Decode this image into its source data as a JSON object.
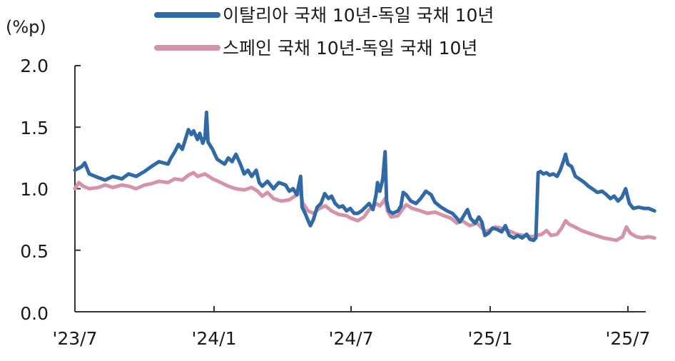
{
  "colors": {
    "italy": "#2f6aa6",
    "spain": "#d593a8",
    "axis": "#333333"
  },
  "chart_data": {
    "type": "line",
    "unit_label": "(%p)",
    "title": "",
    "xlabel": "",
    "ylabel": "(%p)",
    "ylim": [
      0.0,
      2.0
    ],
    "yticks": [
      0.0,
      0.5,
      1.0,
      1.5,
      2.0
    ],
    "ytick_labels": [
      "0.0",
      "0.5",
      "1.0",
      "1.5",
      "2.0"
    ],
    "xlim": [
      "2023-07-01",
      "2025-08-05"
    ],
    "xticks": [
      "2023-07-01",
      "2024-01-01",
      "2024-07-01",
      "2025-01-01",
      "2025-07-01"
    ],
    "xtick_labels": [
      "'23/7",
      "'24/1",
      "'24/7",
      "'25/1",
      "'25/7"
    ],
    "grid": false,
    "legend_position": "top-center",
    "series": [
      {
        "name": "이탈리아 국채 10년-독일 국채 10년",
        "color": "#2f6aa6",
        "points": [
          [
            "2023-07-01",
            1.15
          ],
          [
            "2023-07-10",
            1.18
          ],
          [
            "2023-07-14",
            1.21
          ],
          [
            "2023-07-20",
            1.12
          ],
          [
            "2023-08-01",
            1.09
          ],
          [
            "2023-08-10",
            1.07
          ],
          [
            "2023-08-20",
            1.1
          ],
          [
            "2023-09-01",
            1.08
          ],
          [
            "2023-09-10",
            1.12
          ],
          [
            "2023-09-20",
            1.1
          ],
          [
            "2023-10-01",
            1.14
          ],
          [
            "2023-10-10",
            1.18
          ],
          [
            "2023-10-20",
            1.22
          ],
          [
            "2023-11-01",
            1.2
          ],
          [
            "2023-11-05",
            1.25
          ],
          [
            "2023-11-10",
            1.3
          ],
          [
            "2023-11-15",
            1.36
          ],
          [
            "2023-11-20",
            1.32
          ],
          [
            "2023-11-25",
            1.42
          ],
          [
            "2023-11-28",
            1.48
          ],
          [
            "2023-12-02",
            1.44
          ],
          [
            "2023-12-05",
            1.47
          ],
          [
            "2023-12-10",
            1.4
          ],
          [
            "2023-12-13",
            1.45
          ],
          [
            "2023-12-17",
            1.37
          ],
          [
            "2023-12-20",
            1.42
          ],
          [
            "2023-12-22",
            1.62
          ],
          [
            "2023-12-24",
            1.38
          ],
          [
            "2023-12-30",
            1.32
          ],
          [
            "2024-01-05",
            1.24
          ],
          [
            "2024-01-10",
            1.22
          ],
          [
            "2024-01-15",
            1.2
          ],
          [
            "2024-01-20",
            1.25
          ],
          [
            "2024-01-25",
            1.22
          ],
          [
            "2024-01-30",
            1.28
          ],
          [
            "2024-02-05",
            1.2
          ],
          [
            "2024-02-10",
            1.12
          ],
          [
            "2024-02-15",
            1.15
          ],
          [
            "2024-02-20",
            1.1
          ],
          [
            "2024-02-26",
            1.15
          ],
          [
            "2024-03-01",
            1.05
          ],
          [
            "2024-03-05",
            1.02
          ],
          [
            "2024-03-12",
            1.06
          ],
          [
            "2024-03-20",
            1.0
          ],
          [
            "2024-03-27",
            1.05
          ],
          [
            "2024-04-05",
            1.03
          ],
          [
            "2024-04-10",
            0.98
          ],
          [
            "2024-04-15",
            1.0
          ],
          [
            "2024-04-20",
            0.95
          ],
          [
            "2024-04-25",
            1.1
          ],
          [
            "2024-04-27",
            0.85
          ],
          [
            "2024-05-01",
            0.8
          ],
          [
            "2024-05-05",
            0.74
          ],
          [
            "2024-05-08",
            0.7
          ],
          [
            "2024-05-12",
            0.75
          ],
          [
            "2024-05-17",
            0.85
          ],
          [
            "2024-05-22",
            0.88
          ],
          [
            "2024-05-27",
            0.96
          ],
          [
            "2024-06-01",
            0.92
          ],
          [
            "2024-06-05",
            0.94
          ],
          [
            "2024-06-10",
            0.88
          ],
          [
            "2024-06-15",
            0.85
          ],
          [
            "2024-06-20",
            0.86
          ],
          [
            "2024-06-25",
            0.82
          ],
          [
            "2024-06-30",
            0.84
          ],
          [
            "2024-07-05",
            0.8
          ],
          [
            "2024-07-10",
            0.8
          ],
          [
            "2024-07-15",
            0.82
          ],
          [
            "2024-07-20",
            0.85
          ],
          [
            "2024-07-25",
            0.88
          ],
          [
            "2024-07-30",
            0.83
          ],
          [
            "2024-08-03",
            0.95
          ],
          [
            "2024-08-05",
            1.05
          ],
          [
            "2024-08-08",
            0.98
          ],
          [
            "2024-08-12",
            1.08
          ],
          [
            "2024-08-15",
            1.3
          ],
          [
            "2024-08-17",
            0.9
          ],
          [
            "2024-08-20",
            0.82
          ],
          [
            "2024-08-25",
            0.8
          ],
          [
            "2024-09-01",
            0.82
          ],
          [
            "2024-09-05",
            0.86
          ],
          [
            "2024-09-08",
            0.97
          ],
          [
            "2024-09-12",
            0.95
          ],
          [
            "2024-09-18",
            0.9
          ],
          [
            "2024-09-25",
            0.88
          ],
          [
            "2024-10-01",
            0.92
          ],
          [
            "2024-10-08",
            0.98
          ],
          [
            "2024-10-15",
            0.95
          ],
          [
            "2024-10-20",
            0.89
          ],
          [
            "2024-10-28",
            0.85
          ],
          [
            "2024-11-05",
            0.82
          ],
          [
            "2024-11-12",
            0.8
          ],
          [
            "2024-11-18",
            0.76
          ],
          [
            "2024-11-22",
            0.73
          ],
          [
            "2024-11-27",
            0.78
          ],
          [
            "2024-12-02",
            0.83
          ],
          [
            "2024-12-06",
            0.76
          ],
          [
            "2024-12-12",
            0.72
          ],
          [
            "2024-12-17",
            0.77
          ],
          [
            "2024-12-21",
            0.73
          ],
          [
            "2024-12-25",
            0.62
          ],
          [
            "2024-12-30",
            0.64
          ],
          [
            "2025-01-04",
            0.68
          ],
          [
            "2025-01-10",
            0.67
          ],
          [
            "2025-01-16",
            0.65
          ],
          [
            "2025-01-21",
            0.7
          ],
          [
            "2025-01-26",
            0.62
          ],
          [
            "2025-02-01",
            0.6
          ],
          [
            "2025-02-06",
            0.62
          ],
          [
            "2025-02-12",
            0.6
          ],
          [
            "2025-02-18",
            0.63
          ],
          [
            "2025-02-22",
            0.59
          ],
          [
            "2025-02-27",
            0.58
          ],
          [
            "2025-03-02",
            0.6
          ],
          [
            "2025-03-05",
            1.13
          ],
          [
            "2025-03-08",
            1.14
          ],
          [
            "2025-03-12",
            1.12
          ],
          [
            "2025-03-16",
            1.13
          ],
          [
            "2025-03-20",
            1.11
          ],
          [
            "2025-03-25",
            1.12
          ],
          [
            "2025-03-30",
            1.1
          ],
          [
            "2025-04-03",
            1.15
          ],
          [
            "2025-04-07",
            1.22
          ],
          [
            "2025-04-10",
            1.28
          ],
          [
            "2025-04-13",
            1.2
          ],
          [
            "2025-04-18",
            1.18
          ],
          [
            "2025-04-23",
            1.1
          ],
          [
            "2025-04-28",
            1.08
          ],
          [
            "2025-05-05",
            1.05
          ],
          [
            "2025-05-10",
            1.02
          ],
          [
            "2025-05-15",
            1.0
          ],
          [
            "2025-05-22",
            0.97
          ],
          [
            "2025-05-28",
            0.98
          ],
          [
            "2025-06-03",
            0.95
          ],
          [
            "2025-06-08",
            0.92
          ],
          [
            "2025-06-13",
            0.94
          ],
          [
            "2025-06-18",
            0.9
          ],
          [
            "2025-06-23",
            0.93
          ],
          [
            "2025-06-28",
            1.0
          ],
          [
            "2025-07-03",
            0.88
          ],
          [
            "2025-07-08",
            0.84
          ],
          [
            "2025-07-15",
            0.85
          ],
          [
            "2025-07-22",
            0.84
          ],
          [
            "2025-07-28",
            0.84
          ],
          [
            "2025-08-05",
            0.82
          ]
        ]
      },
      {
        "name": "스페인 국채 10년-독일 국채 10년",
        "color": "#d593a8",
        "points": [
          [
            "2023-07-01",
            1.0
          ],
          [
            "2023-07-06",
            1.05
          ],
          [
            "2023-07-12",
            1.02
          ],
          [
            "2023-07-20",
            1.0
          ],
          [
            "2023-08-01",
            1.01
          ],
          [
            "2023-08-10",
            1.03
          ],
          [
            "2023-08-20",
            1.01
          ],
          [
            "2023-09-01",
            1.03
          ],
          [
            "2023-09-10",
            1.02
          ],
          [
            "2023-09-20",
            1.0
          ],
          [
            "2023-10-01",
            1.03
          ],
          [
            "2023-10-10",
            1.04
          ],
          [
            "2023-10-20",
            1.06
          ],
          [
            "2023-11-01",
            1.05
          ],
          [
            "2023-11-10",
            1.08
          ],
          [
            "2023-11-20",
            1.07
          ],
          [
            "2023-11-28",
            1.11
          ],
          [
            "2023-12-05",
            1.13
          ],
          [
            "2023-12-10",
            1.1
          ],
          [
            "2023-12-20",
            1.12
          ],
          [
            "2023-12-30",
            1.08
          ],
          [
            "2024-01-10",
            1.05
          ],
          [
            "2024-01-20",
            1.02
          ],
          [
            "2024-01-30",
            1.0
          ],
          [
            "2024-02-10",
            0.99
          ],
          [
            "2024-02-20",
            1.01
          ],
          [
            "2024-02-28",
            0.98
          ],
          [
            "2024-03-05",
            0.94
          ],
          [
            "2024-03-12",
            0.97
          ],
          [
            "2024-03-20",
            0.92
          ],
          [
            "2024-03-30",
            0.9
          ],
          [
            "2024-04-10",
            0.91
          ],
          [
            "2024-04-20",
            0.95
          ],
          [
            "2024-04-25",
            0.97
          ],
          [
            "2024-04-28",
            0.88
          ],
          [
            "2024-05-05",
            0.82
          ],
          [
            "2024-05-12",
            0.8
          ],
          [
            "2024-05-20",
            0.84
          ],
          [
            "2024-05-28",
            0.86
          ],
          [
            "2024-06-05",
            0.82
          ],
          [
            "2024-06-15",
            0.79
          ],
          [
            "2024-06-25",
            0.78
          ],
          [
            "2024-07-01",
            0.76
          ],
          [
            "2024-07-10",
            0.74
          ],
          [
            "2024-07-18",
            0.77
          ],
          [
            "2024-07-25",
            0.83
          ],
          [
            "2024-07-30",
            0.85
          ],
          [
            "2024-08-03",
            0.88
          ],
          [
            "2024-08-08",
            0.86
          ],
          [
            "2024-08-12",
            0.89
          ],
          [
            "2024-08-15",
            0.92
          ],
          [
            "2024-08-18",
            0.82
          ],
          [
            "2024-08-23",
            0.77
          ],
          [
            "2024-09-01",
            0.78
          ],
          [
            "2024-09-08",
            0.84
          ],
          [
            "2024-09-12",
            0.87
          ],
          [
            "2024-09-20",
            0.84
          ],
          [
            "2024-10-01",
            0.82
          ],
          [
            "2024-10-10",
            0.8
          ],
          [
            "2024-10-20",
            0.81
          ],
          [
            "2024-11-01",
            0.78
          ],
          [
            "2024-11-10",
            0.76
          ],
          [
            "2024-11-18",
            0.72
          ],
          [
            "2024-11-25",
            0.74
          ],
          [
            "2024-12-05",
            0.7
          ],
          [
            "2024-12-15",
            0.72
          ],
          [
            "2024-12-21",
            0.68
          ],
          [
            "2024-12-26",
            0.65
          ],
          [
            "2025-01-02",
            0.67
          ],
          [
            "2025-01-08",
            0.69
          ],
          [
            "2025-01-15",
            0.68
          ],
          [
            "2025-01-25",
            0.66
          ],
          [
            "2025-02-05",
            0.63
          ],
          [
            "2025-02-15",
            0.62
          ],
          [
            "2025-02-25",
            0.61
          ],
          [
            "2025-03-03",
            0.62
          ],
          [
            "2025-03-10",
            0.63
          ],
          [
            "2025-03-16",
            0.66
          ],
          [
            "2025-03-22",
            0.62
          ],
          [
            "2025-03-30",
            0.63
          ],
          [
            "2025-04-05",
            0.68
          ],
          [
            "2025-04-10",
            0.74
          ],
          [
            "2025-04-15",
            0.71
          ],
          [
            "2025-04-22",
            0.69
          ],
          [
            "2025-05-01",
            0.66
          ],
          [
            "2025-05-10",
            0.64
          ],
          [
            "2025-05-20",
            0.62
          ],
          [
            "2025-05-30",
            0.6
          ],
          [
            "2025-06-08",
            0.59
          ],
          [
            "2025-06-16",
            0.58
          ],
          [
            "2025-06-24",
            0.61
          ],
          [
            "2025-06-29",
            0.69
          ],
          [
            "2025-07-04",
            0.64
          ],
          [
            "2025-07-12",
            0.61
          ],
          [
            "2025-07-20",
            0.6
          ],
          [
            "2025-07-28",
            0.61
          ],
          [
            "2025-08-05",
            0.6
          ]
        ]
      }
    ]
  }
}
